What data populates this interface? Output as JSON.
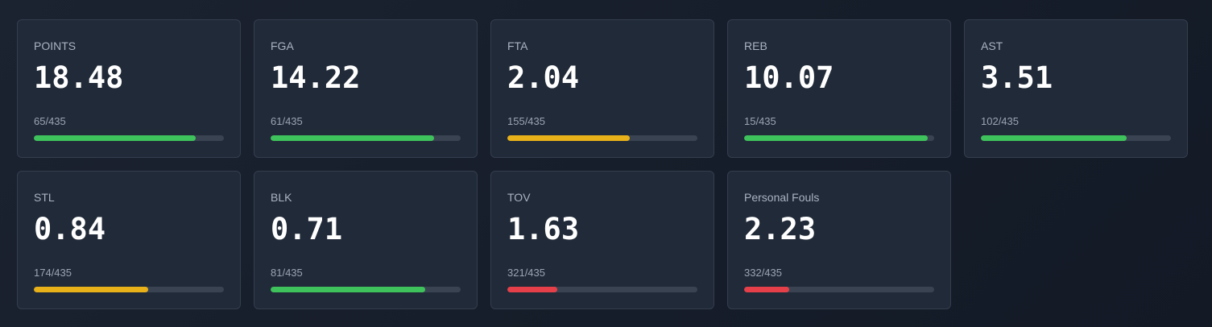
{
  "colors": {
    "green": "#3ec25c",
    "yellow": "#e8b11a",
    "red": "#e5404a"
  },
  "stats": [
    {
      "label": "POINTS",
      "value": "18.48",
      "rank": "65/435",
      "progress": 0.853,
      "color": "green"
    },
    {
      "label": "FGA",
      "value": "14.22",
      "rank": "61/435",
      "progress": 0.862,
      "color": "green"
    },
    {
      "label": "FTA",
      "value": "2.04",
      "rank": "155/435",
      "progress": 0.646,
      "color": "yellow"
    },
    {
      "label": "REB",
      "value": "10.07",
      "rank": "15/435",
      "progress": 0.968,
      "color": "green"
    },
    {
      "label": "AST",
      "value": "3.51",
      "rank": "102/435",
      "progress": 0.768,
      "color": "green"
    },
    {
      "label": "STL",
      "value": "0.84",
      "rank": "174/435",
      "progress": 0.602,
      "color": "yellow"
    },
    {
      "label": "BLK",
      "value": "0.71",
      "rank": "81/435",
      "progress": 0.815,
      "color": "green"
    },
    {
      "label": "TOV",
      "value": "1.63",
      "rank": "321/435",
      "progress": 0.264,
      "color": "red"
    },
    {
      "label": "Personal Fouls",
      "value": "2.23",
      "rank": "332/435",
      "progress": 0.238,
      "color": "red"
    }
  ]
}
